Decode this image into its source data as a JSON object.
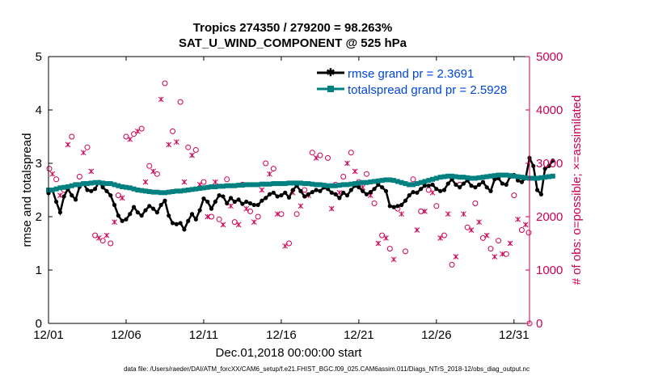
{
  "chart_data": {
    "type": "line",
    "title": "Tropics 274350 / 279200 = 98.263%",
    "subtitle": "SAT_U_WIND_COMPONENT @ 525 hPa",
    "xlabel": "Dec.01,2018 00:00:00 start",
    "ylabel_left": "rmse and totalspread",
    "ylabel_right": "# of obs: o=possible; ×=assimilated",
    "footnote": "data file: /Users/raeder/DAI/ATM_forcXX/CAM6_setup/f.e21.FHIST_BGC.f09_025.CAM6assim.011/Diags_NTrS_2018-12/obs_diag_output.nc",
    "xlim": [
      1,
      32
    ],
    "ylim_left": [
      0,
      5
    ],
    "ylim_right": [
      0,
      5000
    ],
    "x_ticks": [
      1,
      6,
      11,
      16,
      21,
      26,
      31
    ],
    "x_tick_labels": [
      "12/01",
      "12/06",
      "12/11",
      "12/16",
      "12/21",
      "12/26",
      "12/31"
    ],
    "y_left_ticks": [
      "0",
      "1",
      "2",
      "3",
      "4",
      "5"
    ],
    "y_right_ticks": [
      "0",
      "1000",
      "2000",
      "3000",
      "4000",
      "5000"
    ],
    "colors": {
      "rmse": "#000000",
      "spread": "#008080",
      "obs": "#cc0055",
      "legend_text": "#0047d6"
    },
    "legend": [
      {
        "name": "rmse",
        "label": "rmse grand pr = 2.3691"
      },
      {
        "name": "spread",
        "label": "totalspread grand pr = 2.5928"
      }
    ],
    "series": [
      {
        "name": "rmse",
        "axis": "left",
        "x_start": 1,
        "dx": 0.25,
        "values": [
          2.44,
          2.5,
          2.28,
          2.08,
          2.38,
          2.52,
          2.4,
          2.32,
          2.56,
          2.62,
          2.5,
          2.48,
          2.52,
          2.65,
          2.55,
          2.48,
          2.4,
          2.22,
          2.02,
          1.92,
          1.95,
          2.05,
          2.18,
          2.08,
          2.02,
          2.12,
          2.2,
          2.15,
          2.08,
          2.22,
          2.3,
          2.02,
          1.88,
          1.86,
          1.88,
          1.76,
          1.92,
          2.05,
          1.95,
          2.12,
          2.34,
          2.28,
          2.15,
          2.28,
          2.4,
          2.38,
          2.25,
          2.35,
          2.28,
          2.32,
          2.24,
          2.28,
          2.25,
          2.22,
          2.22,
          2.3,
          2.35,
          2.42,
          2.45,
          2.38,
          2.4,
          2.45,
          2.36,
          2.5,
          2.58,
          2.48,
          2.38,
          2.42,
          2.46,
          2.5,
          2.48,
          2.55,
          2.52,
          2.45,
          2.42,
          2.35,
          2.45,
          2.4,
          2.5,
          2.58,
          2.55,
          2.48,
          2.42,
          2.46,
          2.52,
          2.6,
          2.55,
          2.48,
          2.2,
          2.18,
          2.2,
          2.22,
          2.3,
          2.4,
          2.46,
          2.45,
          2.52,
          2.58,
          2.58,
          2.6,
          2.52,
          2.48,
          2.5,
          2.62,
          2.7,
          2.6,
          2.55,
          2.62,
          2.68,
          2.58,
          2.55,
          2.6,
          2.65,
          2.55,
          2.48,
          2.7,
          2.72,
          2.62,
          2.6,
          2.75,
          2.78,
          2.68,
          2.65,
          2.72,
          3.1,
          2.95,
          2.5,
          2.42,
          2.9,
          2.95,
          3.05
        ]
      },
      {
        "name": "totalspread",
        "axis": "left",
        "x_start": 1,
        "dx": 0.25,
        "values": [
          2.5,
          2.5,
          2.52,
          2.54,
          2.55,
          2.56,
          2.58,
          2.6,
          2.6,
          2.62,
          2.62,
          2.63,
          2.64,
          2.64,
          2.63,
          2.62,
          2.62,
          2.6,
          2.58,
          2.56,
          2.55,
          2.54,
          2.52,
          2.5,
          2.49,
          2.48,
          2.47,
          2.46,
          2.46,
          2.45,
          2.45,
          2.46,
          2.47,
          2.48,
          2.48,
          2.49,
          2.5,
          2.51,
          2.52,
          2.53,
          2.54,
          2.55,
          2.56,
          2.56,
          2.57,
          2.57,
          2.58,
          2.58,
          2.58,
          2.59,
          2.59,
          2.6,
          2.6,
          2.6,
          2.6,
          2.61,
          2.61,
          2.61,
          2.62,
          2.62,
          2.62,
          2.62,
          2.63,
          2.63,
          2.63,
          2.63,
          2.62,
          2.62,
          2.61,
          2.6,
          2.6,
          2.59,
          2.58,
          2.58,
          2.58,
          2.59,
          2.6,
          2.6,
          2.61,
          2.62,
          2.63,
          2.64,
          2.64,
          2.65,
          2.66,
          2.67,
          2.68,
          2.69,
          2.69,
          2.68,
          2.66,
          2.64,
          2.62,
          2.6,
          2.6,
          2.62,
          2.64,
          2.66,
          2.68,
          2.7,
          2.72,
          2.74,
          2.75,
          2.76,
          2.76,
          2.75,
          2.74,
          2.74,
          2.73,
          2.72,
          2.72,
          2.73,
          2.74,
          2.75,
          2.76,
          2.77,
          2.78,
          2.78,
          2.78,
          2.77,
          2.76,
          2.75,
          2.74,
          2.73,
          2.72,
          2.72,
          2.72,
          2.73,
          2.74,
          2.75,
          2.76
        ]
      },
      {
        "name": "obs_possible",
        "axis": "right",
        "marker": "o",
        "points": [
          [
            1,
            2900
          ],
          [
            1.5,
            2700
          ],
          [
            2.0,
            2500
          ],
          [
            2.5,
            3500
          ],
          [
            3.0,
            2750
          ],
          [
            3.5,
            3300
          ],
          [
            4.0,
            1650
          ],
          [
            4.5,
            1550
          ],
          [
            5.0,
            1500
          ],
          [
            5.5,
            2400
          ],
          [
            6.0,
            3500
          ],
          [
            6.5,
            3550
          ],
          [
            7.0,
            3650
          ],
          [
            7.5,
            2950
          ],
          [
            8.0,
            2800
          ],
          [
            8.5,
            4500
          ],
          [
            9.0,
            3600
          ],
          [
            9.5,
            4150
          ],
          [
            10.0,
            3300
          ],
          [
            10.5,
            3250
          ],
          [
            11.0,
            2650
          ],
          [
            11.5,
            2000
          ],
          [
            12.0,
            1950
          ],
          [
            12.5,
            2700
          ],
          [
            13.0,
            1900
          ],
          [
            13.5,
            2600
          ],
          [
            14.0,
            2100
          ],
          [
            14.5,
            2000
          ],
          [
            15.0,
            3000
          ],
          [
            15.5,
            2900
          ],
          [
            16.0,
            2050
          ],
          [
            16.5,
            1500
          ],
          [
            17.0,
            2050
          ],
          [
            17.5,
            2500
          ],
          [
            18.0,
            3200
          ],
          [
            18.5,
            3150
          ],
          [
            19.0,
            3100
          ],
          [
            19.5,
            2600
          ],
          [
            20.0,
            2750
          ],
          [
            20.5,
            3200
          ],
          [
            21.0,
            2650
          ],
          [
            21.5,
            2800
          ],
          [
            22.0,
            2250
          ],
          [
            22.5,
            1650
          ],
          [
            23.0,
            1400
          ],
          [
            23.5,
            2150
          ],
          [
            24.0,
            1350
          ],
          [
            24.5,
            2700
          ],
          [
            25.0,
            2100
          ],
          [
            25.5,
            2500
          ],
          [
            26.0,
            2200
          ],
          [
            26.5,
            1650
          ],
          [
            27.0,
            1100
          ],
          [
            27.5,
            2600
          ],
          [
            28.0,
            1800
          ],
          [
            28.5,
            2250
          ],
          [
            29.0,
            1600
          ],
          [
            29.5,
            1400
          ],
          [
            30.0,
            1550
          ],
          [
            30.5,
            1300
          ],
          [
            31.0,
            2400
          ],
          [
            31.5,
            1750
          ],
          [
            32.0,
            1700
          ]
        ]
      },
      {
        "name": "obs_assimilated",
        "axis": "right",
        "marker": "x",
        "points": [
          [
            1.25,
            2800
          ],
          [
            1.75,
            2400
          ],
          [
            2.25,
            3350
          ],
          [
            2.75,
            2600
          ],
          [
            3.25,
            3200
          ],
          [
            3.75,
            2850
          ],
          [
            4.25,
            1600
          ],
          [
            4.75,
            1650
          ],
          [
            5.25,
            1900
          ],
          [
            5.75,
            2350
          ],
          [
            6.25,
            3450
          ],
          [
            6.75,
            3600
          ],
          [
            7.25,
            2650
          ],
          [
            7.75,
            2850
          ],
          [
            8.25,
            4200
          ],
          [
            8.75,
            3350
          ],
          [
            9.25,
            3400
          ],
          [
            9.75,
            2650
          ],
          [
            10.25,
            3150
          ],
          [
            10.75,
            2600
          ],
          [
            11.25,
            2000
          ],
          [
            11.75,
            2650
          ],
          [
            12.25,
            1850
          ],
          [
            12.75,
            2200
          ],
          [
            13.25,
            1850
          ],
          [
            13.75,
            2150
          ],
          [
            14.25,
            1900
          ],
          [
            14.75,
            2500
          ],
          [
            15.25,
            2800
          ],
          [
            15.75,
            2050
          ],
          [
            16.25,
            1450
          ],
          [
            16.75,
            2450
          ],
          [
            17.25,
            2200
          ],
          [
            17.75,
            2400
          ],
          [
            18.25,
            3100
          ],
          [
            18.75,
            2550
          ],
          [
            19.25,
            2150
          ],
          [
            19.75,
            2450
          ],
          [
            20.25,
            3000
          ],
          [
            20.75,
            2850
          ],
          [
            21.25,
            2550
          ],
          [
            21.75,
            2400
          ],
          [
            22.25,
            1500
          ],
          [
            22.75,
            1600
          ],
          [
            23.25,
            1200
          ],
          [
            23.75,
            2050
          ],
          [
            24.25,
            2600
          ],
          [
            24.75,
            1750
          ],
          [
            25.25,
            2100
          ],
          [
            25.75,
            2450
          ],
          [
            26.25,
            1600
          ],
          [
            26.75,
            2050
          ],
          [
            27.25,
            1250
          ],
          [
            27.75,
            2050
          ],
          [
            28.25,
            1750
          ],
          [
            28.75,
            1900
          ],
          [
            29.25,
            1650
          ],
          [
            29.75,
            1250
          ],
          [
            30.25,
            1300
          ],
          [
            30.75,
            1500
          ],
          [
            31.25,
            1950
          ],
          [
            31.75,
            1850
          ]
        ]
      }
    ]
  }
}
